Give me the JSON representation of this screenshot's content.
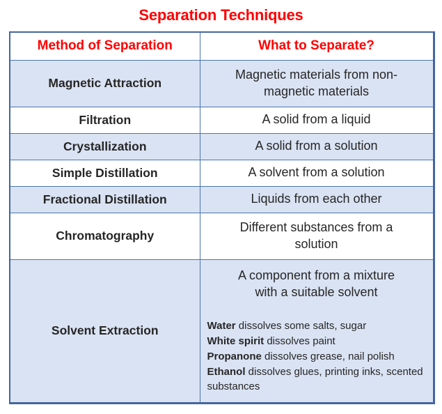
{
  "page": {
    "title": "Separation Techniques"
  },
  "colors": {
    "heading_red": "#ff0000",
    "row_blue": "#dae3f3",
    "border_blue": "#4a74ae",
    "text": "#262626"
  },
  "table": {
    "headers": {
      "method": "Method of Separation",
      "what": "What to Separate?"
    },
    "rows": [
      {
        "method": "Magnetic Attraction",
        "lines": [
          "Magnetic materials from non-",
          "magnetic materials"
        ]
      },
      {
        "method": "Filtration",
        "lines": [
          "A solid from a liquid"
        ]
      },
      {
        "method": "Crystallization",
        "lines": [
          "A solid from a solution"
        ]
      },
      {
        "method": "Simple Distillation",
        "lines": [
          "A solvent from a solution"
        ]
      },
      {
        "method": "Fractional Distillation",
        "lines": [
          "Liquids from each other"
        ]
      },
      {
        "method": "Chromatography",
        "lines": [
          "Different substances from a",
          "solution"
        ]
      }
    ],
    "solvent_row": {
      "method": "Solvent Extraction",
      "lines": [
        "A component from a mixture",
        "with a suitable solvent"
      ],
      "details": [
        {
          "bold": "Water",
          "rest": " dissolves some salts, sugar"
        },
        {
          "bold": "White spirit",
          "rest": " dissolves paint"
        },
        {
          "bold": "Propanone",
          "rest": "  dissolves grease, nail polish"
        },
        {
          "bold": "Ethanol",
          "rest": " dissolves glues, printing inks, scented substances"
        }
      ]
    }
  }
}
